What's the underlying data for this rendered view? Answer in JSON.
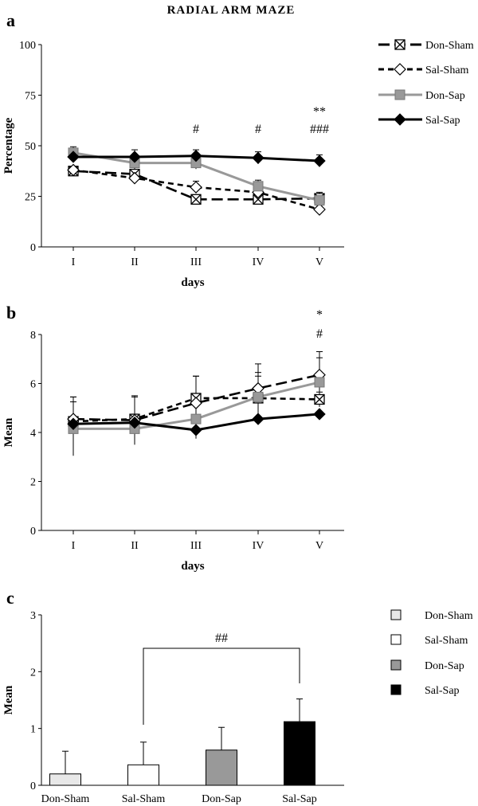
{
  "title": "RADIAL ARM MAZE",
  "chart_data": [
    {
      "panel": "a",
      "type": "line",
      "xlabel": "days",
      "ylabel": "Percentage",
      "categories": [
        "I",
        "II",
        "III",
        "IV",
        "V"
      ],
      "ylim": [
        0,
        100
      ],
      "yticks": [
        "0",
        "25",
        "50",
        "75",
        "100"
      ],
      "series": [
        {
          "name": "Don-Sham",
          "values": [
            37.5,
            36,
            23.5,
            23.5,
            24
          ],
          "err": [
            1.5,
            2,
            2,
            1.5,
            1.5
          ],
          "color": "#000000",
          "dash": "long",
          "marker": "xbox"
        },
        {
          "name": "Sal-Sham",
          "values": [
            38,
            34,
            29.5,
            27,
            18.5
          ],
          "err": [
            1.5,
            2,
            3,
            2,
            1.5
          ],
          "color": "#000000",
          "dash": "short",
          "marker": "diamond-open"
        },
        {
          "name": "Don-Sap",
          "values": [
            46.5,
            41.5,
            41.5,
            30,
            23
          ],
          "err": [
            3,
            3,
            3,
            3,
            4
          ],
          "color": "#999999",
          "dash": "solid",
          "marker": "square-gray"
        },
        {
          "name": "Sal-Sap",
          "values": [
            44.5,
            44.5,
            45,
            44,
            42.5
          ],
          "err": [
            2.5,
            3.5,
            3,
            3,
            3
          ],
          "color": "#000000",
          "dash": "solid",
          "marker": "diamond-filled"
        }
      ],
      "annotations": [
        {
          "day": "III",
          "text": "#"
        },
        {
          "day": "IV",
          "text": "#"
        },
        {
          "day": "V",
          "text": "**"
        },
        {
          "day": "V",
          "text": "###"
        }
      ]
    },
    {
      "panel": "b",
      "type": "line",
      "xlabel": "days",
      "ylabel": "Mean",
      "categories": [
        "I",
        "II",
        "III",
        "IV",
        "V"
      ],
      "ylim": [
        0,
        8
      ],
      "yticks": [
        "0",
        "2",
        "4",
        "6",
        "8"
      ],
      "series": [
        {
          "name": "Don-Sham",
          "values": [
            4.45,
            4.55,
            5.4,
            5.4,
            5.35
          ],
          "err": [
            1.0,
            0.9,
            0.9,
            0.9,
            0.3
          ],
          "color": "#000000",
          "dash": "short",
          "marker": "xbox"
        },
        {
          "name": "Sal-Sham",
          "values": [
            4.55,
            4.5,
            5.2,
            5.8,
            6.35
          ],
          "err": [
            0.9,
            1.0,
            1.1,
            1.0,
            0.95
          ],
          "color": "#000000",
          "dash": "long",
          "marker": "diamond-open"
        },
        {
          "name": "Don-Sap",
          "values": [
            4.15,
            4.15,
            4.55,
            5.45,
            6.05
          ],
          "err": [
            1.1,
            0.6,
            0.8,
            1.0,
            1.0
          ],
          "color": "#999999",
          "dash": "solid",
          "marker": "square-gray"
        },
        {
          "name": "Sal-Sap",
          "values": [
            4.35,
            4.4,
            4.1,
            4.55,
            4.75
          ],
          "err": [
            0,
            0,
            0,
            0,
            0
          ],
          "color": "#000000",
          "dash": "solid",
          "marker": "diamond-filled"
        }
      ],
      "annotations": [
        {
          "day": "V",
          "text": "*"
        },
        {
          "day": "V",
          "text": "#"
        }
      ]
    },
    {
      "panel": "c",
      "type": "bar",
      "ylabel": "Mean",
      "categories": [
        "Don-Sham",
        "Sal-Sham",
        "Don-Sap",
        "Sal-Sap"
      ],
      "ylim": [
        0,
        3
      ],
      "yticks": [
        "0",
        "1",
        "2",
        "3"
      ],
      "values": [
        0.2,
        0.36,
        0.62,
        1.12
      ],
      "err": [
        0.4,
        0.4,
        0.4,
        0.4
      ],
      "colors": [
        "#e8e8e8",
        "#ffffff",
        "#999999",
        "#000000"
      ],
      "bracket": {
        "from": "Sal-Sham",
        "to": "Sal-Sap",
        "label": "##"
      },
      "legend": [
        {
          "name": "Don-Sham",
          "color": "#e8e8e8"
        },
        {
          "name": "Sal-Sham",
          "color": "#ffffff"
        },
        {
          "name": "Don-Sap",
          "color": "#999999"
        },
        {
          "name": "Sal-Sap",
          "color": "#000000"
        }
      ]
    }
  ]
}
